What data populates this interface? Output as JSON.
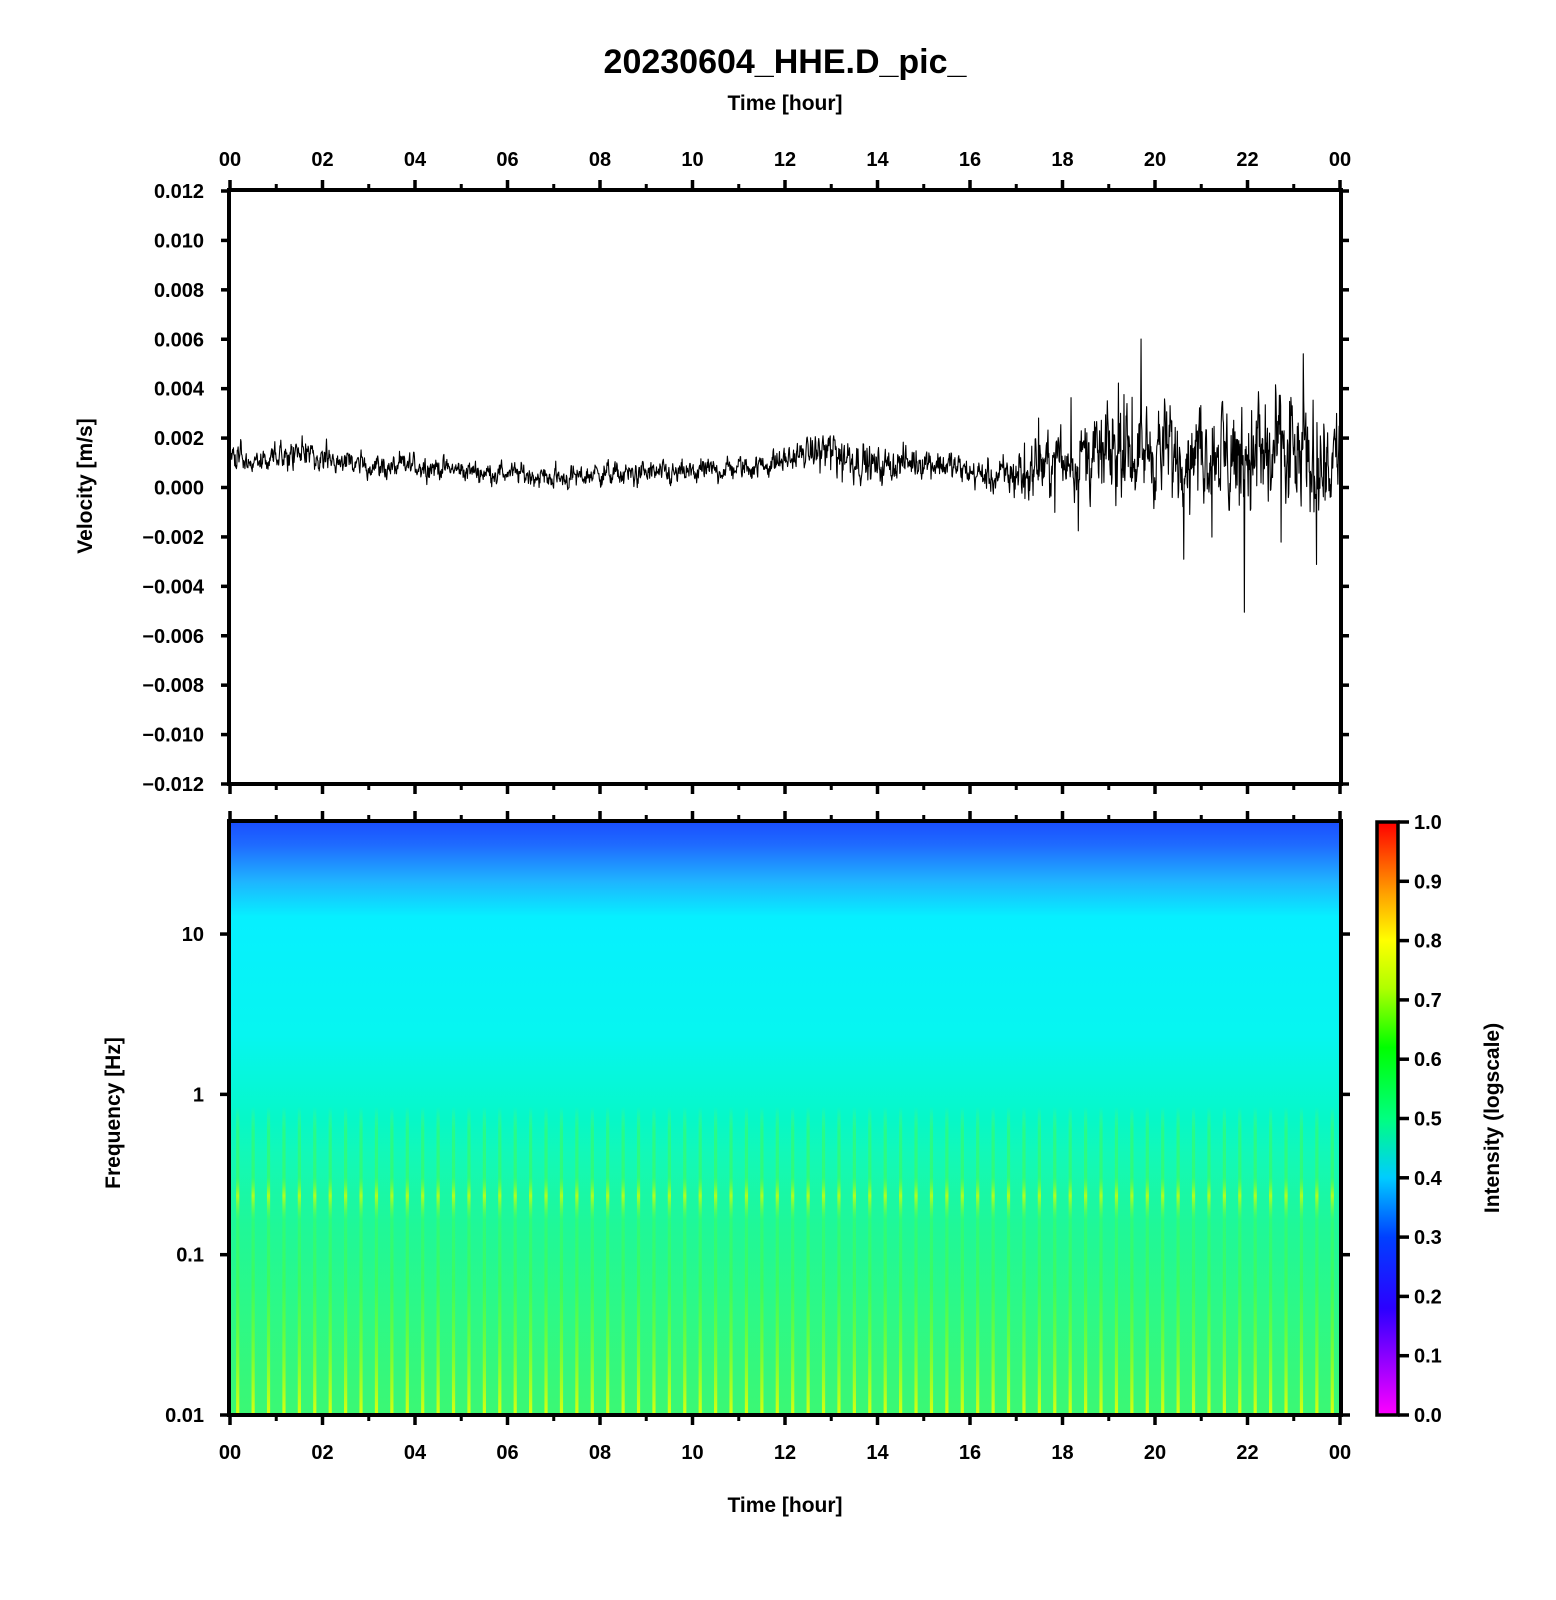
{
  "title": "20230604_HHE.D_pic_",
  "chart_data": [
    {
      "type": "line",
      "panel": "waveform",
      "title": "20230604_HHE.D_pic_",
      "xlabel_top": "Time [hour]",
      "ylabel": "Velocity [m/s]",
      "x_ticks": [
        "00",
        "02",
        "04",
        "06",
        "08",
        "10",
        "12",
        "14",
        "16",
        "18",
        "20",
        "22",
        "00"
      ],
      "xlim_hours": [
        0,
        24
      ],
      "ylim": [
        -0.012,
        0.012
      ],
      "y_ticks": [
        "0.012",
        "0.010",
        "0.008",
        "0.006",
        "0.004",
        "0.002",
        "0.000",
        "−0.002",
        "−0.004",
        "−0.006",
        "−0.008",
        "−0.010",
        "−0.012"
      ],
      "line_color": "#000000",
      "series": [
        {
          "x_hours": [
            0,
            0.5,
            1,
            1.5,
            2,
            2.5,
            3,
            3.5,
            4,
            4.5,
            5,
            5.5,
            6,
            6.5,
            7,
            7.5,
            8,
            8.5,
            9,
            9.5,
            10,
            10.5,
            11,
            11.5,
            12,
            12.5,
            13,
            13.5,
            14,
            14.5,
            15,
            15.5,
            16,
            16.5,
            17,
            17.5,
            18,
            18.5,
            19,
            19.5,
            20,
            20.5,
            21,
            21.5,
            22,
            22.5,
            23,
            23.5,
            24
          ],
          "mean": [
            0.0012,
            0.0011,
            0.0013,
            0.0014,
            0.0013,
            0.001,
            0.0009,
            0.0008,
            0.0009,
            0.0008,
            0.0007,
            0.0006,
            0.0006,
            0.0005,
            0.0004,
            0.0004,
            0.0006,
            0.0005,
            0.0006,
            0.0005,
            0.0006,
            0.0007,
            0.0008,
            0.0009,
            0.0011,
            0.0014,
            0.0015,
            0.0012,
            0.0008,
            0.001,
            0.0011,
            0.0009,
            0.0006,
            0.0004,
            0.0005,
            0.0009,
            0.0011,
            0.0012,
            0.0013,
            0.0014,
            0.0015,
            0.0013,
            0.0014,
            0.0013,
            0.0014,
            0.0012,
            0.0012,
            0.0011,
            0.0013
          ],
          "envelope": [
            0.0008,
            0.0008,
            0.0009,
            0.001,
            0.0009,
            0.0008,
            0.0008,
            0.0008,
            0.0008,
            0.0007,
            0.0007,
            0.0007,
            0.0007,
            0.0007,
            0.0008,
            0.0008,
            0.0008,
            0.0008,
            0.0008,
            0.0008,
            0.0008,
            0.0008,
            0.0008,
            0.0008,
            0.0008,
            0.0009,
            0.0018,
            0.0014,
            0.0012,
            0.0011,
            0.0011,
            0.0011,
            0.0009,
            0.0011,
            0.0016,
            0.0019,
            0.0021,
            0.0024,
            0.0028,
            0.0026,
            0.0031,
            0.0029,
            0.0026,
            0.0036,
            0.0045,
            0.0041,
            0.0036,
            0.0039,
            0.0031
          ]
        }
      ]
    },
    {
      "type": "heatmap",
      "panel": "spectrogram",
      "xlabel": "Time [hour]",
      "ylabel": "Frequency [Hz]",
      "x_ticks": [
        "00",
        "02",
        "04",
        "06",
        "08",
        "10",
        "12",
        "14",
        "16",
        "18",
        "20",
        "22",
        "00"
      ],
      "xlim_hours": [
        0,
        24
      ],
      "yscale": "log",
      "ylim": [
        0.01,
        50
      ],
      "y_ticks": [
        "10",
        "1",
        "0.1",
        "0.01"
      ],
      "colorbar": {
        "label": "Intensity (logscale)",
        "range": [
          0.0,
          1.0
        ],
        "ticks": [
          "1.0",
          "0.9",
          "0.8",
          "0.7",
          "0.6",
          "0.5",
          "0.4",
          "0.3",
          "0.2",
          "0.1",
          "0.0"
        ],
        "colormap": "rainbow (magenta-blue-cyan-green-yellow-red)"
      }
    }
  ]
}
